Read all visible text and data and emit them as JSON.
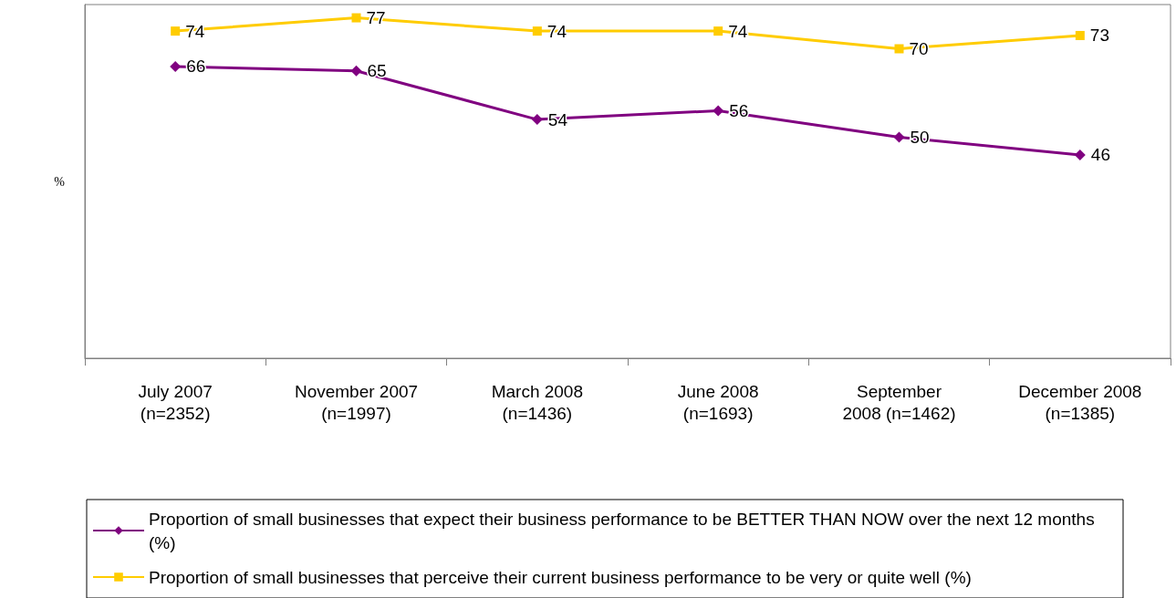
{
  "chart_data": {
    "type": "line",
    "ylabel": "%",
    "categories": [
      "July 2007\n(n=2352)",
      "November 2007\n(n=1997)",
      "March 2008\n(n=1436)",
      "June 2008\n(n=1693)",
      "September\n2008 (n=1462)",
      "December 2008\n(n=1385)"
    ],
    "series": [
      {
        "name": "Proportion of small businesses that expect their business performance to be BETTER THAN NOW over the next 12 months (%)",
        "color": "#800080",
        "marker": "diamond",
        "values": [
          66,
          65,
          54,
          56,
          50,
          46
        ]
      },
      {
        "name": "Proportion of small businesses that perceive their current business performance to be very or quite well (%)",
        "color": "#ffcc00",
        "marker": "square",
        "values": [
          74,
          77,
          74,
          74,
          70,
          73
        ]
      }
    ],
    "data_labels": true,
    "legend": "bottom",
    "tick_labels": "x"
  }
}
